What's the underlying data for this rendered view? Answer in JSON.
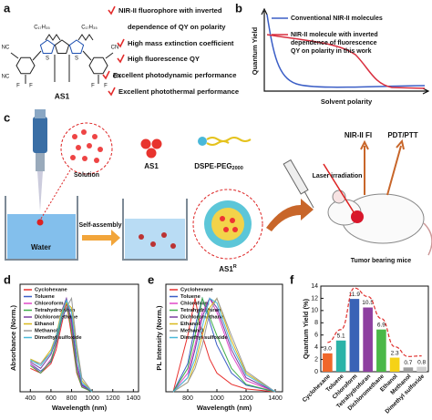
{
  "panel_labels": [
    "a",
    "b",
    "c",
    "d",
    "e",
    "f"
  ],
  "structure": {
    "name": "AS1",
    "atoms": [
      "C₁₇H₃₅",
      "C₁₇H₃₅",
      "NC",
      "NC",
      "CN",
      "CN",
      "F",
      "F",
      "F",
      "F",
      "S",
      "S"
    ]
  },
  "features": [
    "NIR-II fluorophore with inverted",
    "dependence of QY on polarity",
    "High mass extinction coefficient",
    "High fluorescence QY",
    "Excellent photodynamic performance",
    "Excellent photothermal performance"
  ],
  "schematic": {
    "y_label": "Quantum Yield",
    "x_label": "Solvent polarity",
    "legend_conventional": "Conventional  NIR-II molecules",
    "legend_this_work": [
      "NIR-II molecule with inverted",
      "dependence of fluorescence",
      "QY on polarity in this work"
    ]
  },
  "diagram": {
    "solution": "Solution",
    "as1": "AS1",
    "dspe": "DSPE-PEG",
    "dspe_sub": "2000",
    "water": "Water",
    "self_assembly": "Self-assembly",
    "as1r": "AS1",
    "as1r_sup": "R",
    "laser": "Laser irradiation",
    "fi": "NIR-II FI",
    "pdt": "PDT/PTT",
    "mice": "Tumor bearing mice"
  },
  "chart_data": [
    {
      "type": "line",
      "x_label": "Wavelength (nm)",
      "y_label": "Absorbance (Norm.)",
      "x": [
        400,
        500,
        600,
        650,
        700,
        750,
        800,
        850,
        900,
        1000
      ],
      "xlim": [
        300,
        1450
      ],
      "xticks": [
        400,
        600,
        800,
        1000,
        1200,
        1400
      ],
      "ylim": [
        0,
        1.15
      ],
      "series": [
        {
          "name": "Cyclohexane",
          "color": "#e8312f",
          "values": [
            0.25,
            0.2,
            0.3,
            0.45,
            0.7,
            0.95,
            0.6,
            0.2,
            0.05,
            0
          ]
        },
        {
          "name": "Toluene",
          "color": "#3b5ec6",
          "values": [
            0.3,
            0.22,
            0.32,
            0.5,
            0.75,
            0.9,
            0.8,
            0.3,
            0.08,
            0
          ]
        },
        {
          "name": "Chloroform",
          "color": "#e048c8",
          "values": [
            0.3,
            0.2,
            0.35,
            0.5,
            0.8,
            1.0,
            0.7,
            0.25,
            0.06,
            0
          ]
        },
        {
          "name": "Tetrahydrofuran",
          "color": "#3fae49",
          "values": [
            0.28,
            0.2,
            0.33,
            0.52,
            0.78,
            0.98,
            0.65,
            0.22,
            0.05,
            0
          ]
        },
        {
          "name": "Dichloromethane",
          "color": "#7a3fa0",
          "values": [
            0.32,
            0.25,
            0.4,
            0.55,
            0.85,
            1.0,
            0.75,
            0.3,
            0.07,
            0
          ]
        },
        {
          "name": "Ethanol",
          "color": "#d8b81c",
          "values": [
            0.35,
            0.3,
            0.45,
            0.6,
            0.85,
            0.95,
            0.9,
            0.45,
            0.12,
            0
          ]
        },
        {
          "name": "Methanol",
          "color": "#9a9a9a",
          "values": [
            0.33,
            0.3,
            0.42,
            0.6,
            0.8,
            0.9,
            1.0,
            0.5,
            0.15,
            0
          ]
        },
        {
          "name": "Dimethyl sulfoxide",
          "color": "#49b8d9",
          "values": [
            0.34,
            0.28,
            0.42,
            0.58,
            0.82,
            0.98,
            0.85,
            0.4,
            0.1,
            0
          ]
        }
      ]
    },
    {
      "type": "line",
      "x_label": "Wavelength (nm)",
      "y_label": "PL Intensity (Norm.)",
      "x": [
        700,
        800,
        850,
        900,
        950,
        1000,
        1100,
        1200,
        1400
      ],
      "xlim": [
        650,
        1450
      ],
      "xticks": [
        800,
        1000,
        1200,
        1400
      ],
      "ylim": [
        0,
        1.15
      ],
      "series": [
        {
          "name": "Cyclohexane",
          "color": "#e8312f",
          "values": [
            0,
            0.6,
            1.0,
            0.6,
            0.35,
            0.2,
            0.08,
            0.03,
            0
          ]
        },
        {
          "name": "Toluene",
          "color": "#3b5ec6",
          "values": [
            0,
            0.3,
            0.7,
            1.0,
            0.75,
            0.5,
            0.2,
            0.07,
            0
          ]
        },
        {
          "name": "Chloroform",
          "color": "#e048c8",
          "values": [
            0,
            0.2,
            0.5,
            0.85,
            1.0,
            0.85,
            0.4,
            0.12,
            0
          ]
        },
        {
          "name": "Tetrahydrofuran",
          "color": "#3fae49",
          "values": [
            0,
            0.25,
            0.6,
            1.0,
            0.8,
            0.6,
            0.25,
            0.08,
            0
          ]
        },
        {
          "name": "Dichloromethane",
          "color": "#7a3fa0",
          "values": [
            0,
            0.15,
            0.45,
            0.8,
            1.0,
            0.9,
            0.45,
            0.15,
            0
          ]
        },
        {
          "name": "Ethanol",
          "color": "#d8b81c",
          "values": [
            0,
            0.1,
            0.3,
            0.6,
            0.9,
            1.0,
            0.55,
            0.2,
            0
          ]
        },
        {
          "name": "Methanol",
          "color": "#9a9a9a",
          "values": [
            0,
            0.1,
            0.25,
            0.5,
            0.85,
            1.0,
            0.6,
            0.22,
            0
          ]
        },
        {
          "name": "Dimethyl sulfoxide",
          "color": "#49b8d9",
          "values": [
            0,
            0.15,
            0.35,
            0.7,
            1.0,
            0.95,
            0.5,
            0.18,
            0
          ]
        }
      ]
    },
    {
      "type": "bar",
      "y_label": "Quantum Yield (%)",
      "categories": [
        "Cyclohexane",
        "Toluene",
        "Chloroform",
        "Tetrahydrofuran",
        "Dichloromethane",
        "Ethanol",
        "Methanol",
        "Dimethyl sulfoxide"
      ],
      "values": [
        3.0,
        5.1,
        11.9,
        10.5,
        6.9,
        2.3,
        0.7,
        0.8
      ],
      "value_labels": [
        "3.0",
        "5.1",
        "11.9",
        "10.5",
        "6.9",
        "2.3",
        "0.7",
        "0.8"
      ],
      "colors": [
        "#f0672a",
        "#2bb3a8",
        "#3a63b6",
        "#8e3fa0",
        "#4bb848",
        "#f5d217",
        "#9e9e9e",
        "#d0d0d0"
      ],
      "ylim": [
        0,
        14
      ],
      "yticks": [
        0,
        2,
        4,
        6,
        8,
        10,
        12,
        14
      ]
    }
  ]
}
